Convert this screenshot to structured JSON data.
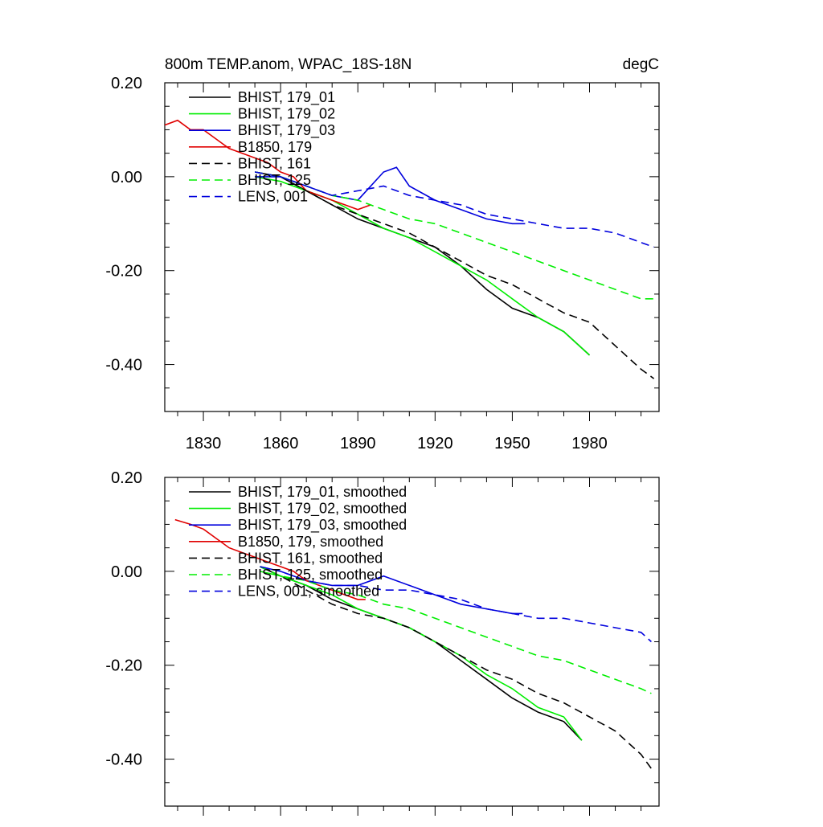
{
  "chart_data": [
    {
      "type": "line",
      "title": "800m TEMP.anom, WPAC_18S-18N",
      "units": "degC",
      "xlim": [
        1815,
        2007
      ],
      "ylim": [
        -0.5,
        0.2
      ],
      "x_tick_labels": [
        "1830",
        "1860",
        "1890",
        "1920",
        "1950",
        "1980"
      ],
      "x_ticks": [
        1830,
        1860,
        1890,
        1920,
        1950,
        1980
      ],
      "y_ticks": [
        0.2,
        0.0,
        -0.2,
        -0.4
      ],
      "y_tick_labels": [
        "0.20",
        "0.00",
        "-0.20",
        "-0.40"
      ],
      "legend_position": "top-left",
      "series": [
        {
          "name": "BHIST, 179_01",
          "color": "#000000",
          "dash": "solid",
          "x": [
            1850,
            1860,
            1870,
            1880,
            1890,
            1900,
            1910,
            1920,
            1930,
            1940,
            1950,
            1960,
            1970,
            1980
          ],
          "values": [
            0.01,
            0.0,
            -0.03,
            -0.06,
            -0.09,
            -0.11,
            -0.13,
            -0.15,
            -0.19,
            -0.24,
            -0.28,
            -0.3,
            -0.33,
            -0.38
          ]
        },
        {
          "name": "BHIST, 179_02",
          "color": "#00ee00",
          "dash": "solid",
          "x": [
            1850,
            1860,
            1870,
            1880,
            1890,
            1900,
            1910,
            1920,
            1930,
            1940,
            1950,
            1960,
            1970,
            1980
          ],
          "values": [
            0.0,
            -0.01,
            -0.03,
            -0.05,
            -0.08,
            -0.11,
            -0.13,
            -0.16,
            -0.19,
            -0.22,
            -0.26,
            -0.3,
            -0.33,
            -0.38
          ]
        },
        {
          "name": "BHIST, 179_03",
          "color": "#0000dd",
          "dash": "solid",
          "x": [
            1850,
            1860,
            1870,
            1880,
            1890,
            1900,
            1905,
            1910,
            1920,
            1930,
            1940,
            1950,
            1955
          ],
          "values": [
            0.0,
            0.0,
            -0.02,
            -0.04,
            -0.05,
            0.01,
            0.02,
            -0.02,
            -0.05,
            -0.07,
            -0.09,
            -0.1,
            -0.1
          ]
        },
        {
          "name": "B1850, 179",
          "color": "#e00000",
          "dash": "solid",
          "x": [
            1815,
            1820,
            1825,
            1830,
            1835,
            1840,
            1845,
            1850,
            1855,
            1860,
            1865,
            1870,
            1875,
            1880,
            1885,
            1890,
            1895
          ],
          "values": [
            0.11,
            0.12,
            0.1,
            0.1,
            0.08,
            0.06,
            0.05,
            0.04,
            0.03,
            0.01,
            0.0,
            -0.03,
            -0.04,
            -0.05,
            -0.06,
            -0.07,
            -0.06
          ]
        },
        {
          "name": "BHIST, 161",
          "color": "#000000",
          "dash": "dashed",
          "x": [
            1850,
            1860,
            1870,
            1880,
            1890,
            1900,
            1910,
            1920,
            1930,
            1940,
            1950,
            1960,
            1970,
            1980,
            1990,
            2000,
            2005
          ],
          "values": [
            0.01,
            0.0,
            -0.03,
            -0.06,
            -0.08,
            -0.1,
            -0.12,
            -0.15,
            -0.18,
            -0.21,
            -0.23,
            -0.26,
            -0.29,
            -0.31,
            -0.36,
            -0.41,
            -0.43
          ]
        },
        {
          "name": "BHIST, 125",
          "color": "#00ee00",
          "dash": "dashed",
          "x": [
            1850,
            1860,
            1870,
            1880,
            1890,
            1900,
            1910,
            1920,
            1930,
            1940,
            1950,
            1960,
            1970,
            1980,
            1990,
            2000,
            2005
          ],
          "values": [
            0.01,
            0.0,
            -0.02,
            -0.04,
            -0.05,
            -0.07,
            -0.09,
            -0.1,
            -0.12,
            -0.14,
            -0.16,
            -0.18,
            -0.2,
            -0.22,
            -0.24,
            -0.26,
            -0.26
          ]
        },
        {
          "name": "LENS, 001",
          "color": "#0000dd",
          "dash": "dashed",
          "x": [
            1850,
            1860,
            1870,
            1880,
            1890,
            1900,
            1910,
            1920,
            1930,
            1940,
            1950,
            1960,
            1970,
            1980,
            1990,
            2000,
            2005
          ],
          "values": [
            0.01,
            0.0,
            -0.02,
            -0.04,
            -0.03,
            -0.02,
            -0.04,
            -0.05,
            -0.06,
            -0.08,
            -0.09,
            -0.1,
            -0.11,
            -0.11,
            -0.12,
            -0.14,
            -0.15
          ]
        }
      ]
    },
    {
      "type": "line",
      "xlim": [
        1815,
        2007
      ],
      "ylim": [
        -0.5,
        0.2
      ],
      "x_ticks": [
        1830,
        1860,
        1890,
        1920,
        1950,
        1980
      ],
      "y_ticks": [
        0.2,
        0.0,
        -0.2,
        -0.4
      ],
      "y_tick_labels": [
        "0.20",
        "0.00",
        "-0.20",
        "-0.40"
      ],
      "legend_position": "top-left",
      "series": [
        {
          "name": "BHIST, 179_01, smoothed",
          "color": "#000000",
          "dash": "solid",
          "x": [
            1852,
            1860,
            1870,
            1880,
            1890,
            1900,
            1910,
            1920,
            1930,
            1940,
            1950,
            1960,
            1970,
            1977
          ],
          "values": [
            0.01,
            -0.01,
            -0.03,
            -0.06,
            -0.08,
            -0.1,
            -0.12,
            -0.15,
            -0.19,
            -0.23,
            -0.27,
            -0.3,
            -0.32,
            -0.36
          ]
        },
        {
          "name": "BHIST, 179_02, smoothed",
          "color": "#00ee00",
          "dash": "solid",
          "x": [
            1852,
            1860,
            1870,
            1880,
            1890,
            1900,
            1910,
            1920,
            1930,
            1940,
            1950,
            1960,
            1970,
            1977
          ],
          "values": [
            0.0,
            -0.01,
            -0.03,
            -0.05,
            -0.08,
            -0.1,
            -0.12,
            -0.15,
            -0.18,
            -0.22,
            -0.25,
            -0.29,
            -0.31,
            -0.36
          ]
        },
        {
          "name": "BHIST, 179_03, smoothed",
          "color": "#0000dd",
          "dash": "solid",
          "x": [
            1852,
            1860,
            1870,
            1880,
            1890,
            1900,
            1910,
            1920,
            1930,
            1940,
            1950,
            1954
          ],
          "values": [
            0.01,
            0.0,
            -0.02,
            -0.03,
            -0.03,
            -0.01,
            -0.03,
            -0.05,
            -0.07,
            -0.08,
            -0.09,
            -0.09
          ]
        },
        {
          "name": "B1850, 179, smoothed",
          "color": "#e00000",
          "dash": "solid",
          "x": [
            1819,
            1825,
            1830,
            1835,
            1840,
            1845,
            1850,
            1855,
            1860,
            1865,
            1870,
            1875,
            1880,
            1885,
            1890,
            1893
          ],
          "values": [
            0.11,
            0.1,
            0.09,
            0.07,
            0.05,
            0.04,
            0.03,
            0.02,
            0.01,
            0.0,
            -0.02,
            -0.03,
            -0.04,
            -0.05,
            -0.06,
            -0.06
          ]
        },
        {
          "name": "BHIST, 161, smoothed",
          "color": "#000000",
          "dash": "dashed",
          "x": [
            1852,
            1860,
            1870,
            1880,
            1890,
            1900,
            1910,
            1920,
            1930,
            1940,
            1950,
            1960,
            1970,
            1980,
            1990,
            2000,
            2004
          ],
          "values": [
            0.01,
            -0.01,
            -0.04,
            -0.07,
            -0.09,
            -0.1,
            -0.12,
            -0.15,
            -0.18,
            -0.21,
            -0.23,
            -0.26,
            -0.28,
            -0.31,
            -0.34,
            -0.39,
            -0.42
          ]
        },
        {
          "name": "BHIST, 125, smoothed",
          "color": "#00ee00",
          "dash": "dashed",
          "x": [
            1852,
            1860,
            1870,
            1880,
            1890,
            1900,
            1910,
            1920,
            1930,
            1940,
            1950,
            1960,
            1970,
            1980,
            1990,
            2000,
            2004
          ],
          "values": [
            0.01,
            -0.01,
            -0.02,
            -0.04,
            -0.05,
            -0.07,
            -0.08,
            -0.1,
            -0.12,
            -0.14,
            -0.16,
            -0.18,
            -0.19,
            -0.21,
            -0.23,
            -0.25,
            -0.26
          ]
        },
        {
          "name": "LENS, 001, smoothed",
          "color": "#0000dd",
          "dash": "dashed",
          "x": [
            1852,
            1860,
            1870,
            1880,
            1890,
            1900,
            1910,
            1920,
            1930,
            1940,
            1950,
            1960,
            1970,
            1980,
            1990,
            2000,
            2004
          ],
          "values": [
            0.01,
            0.0,
            -0.02,
            -0.03,
            -0.03,
            -0.04,
            -0.04,
            -0.05,
            -0.06,
            -0.08,
            -0.09,
            -0.1,
            -0.1,
            -0.11,
            -0.12,
            -0.13,
            -0.15
          ]
        }
      ]
    }
  ]
}
